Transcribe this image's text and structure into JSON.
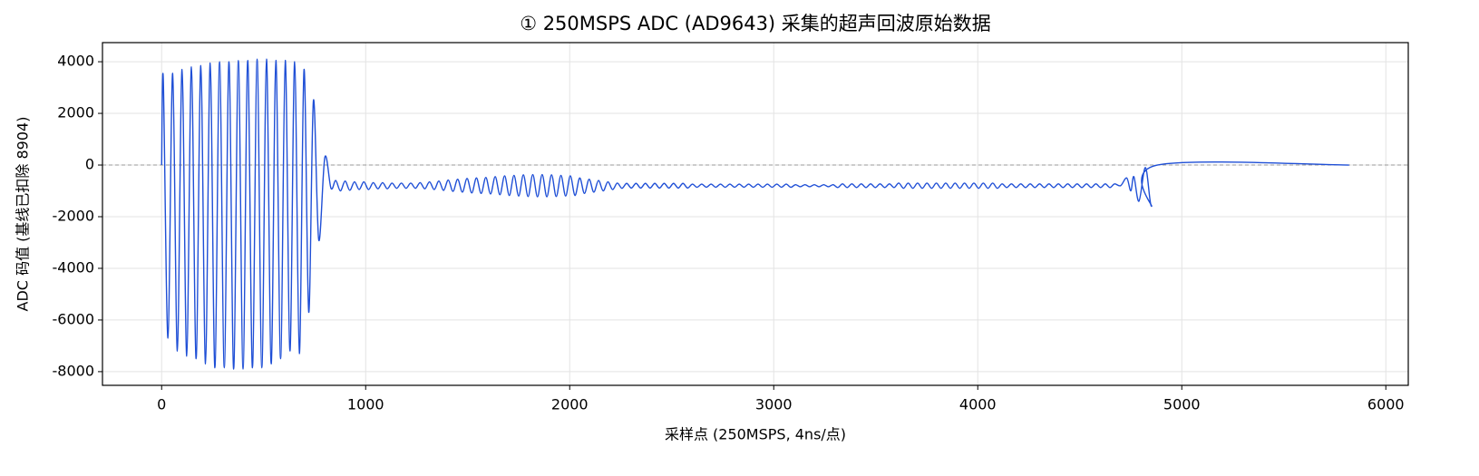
{
  "chart_data": {
    "type": "line",
    "title": "① 250MSPS ADC (AD9643) 采集的超声回波原始数据",
    "xlabel": "采样点 (250MSPS, 4ns/点)",
    "ylabel": "ADC 码值 (基线已扣除 8904)",
    "color": "#1f4fd6",
    "grid": true,
    "hline": 0,
    "xlim": [
      -290,
      6110
    ],
    "ylim": [
      -8530,
      4740
    ],
    "xticks": [
      0,
      1000,
      2000,
      3000,
      4000,
      5000,
      6000
    ],
    "yticks": [
      -8000,
      -6000,
      -4000,
      -2000,
      0,
      2000,
      4000
    ],
    "x": [
      0,
      8,
      31,
      54,
      77,
      100,
      123,
      146,
      169,
      192,
      215,
      238,
      261,
      284,
      307,
      330,
      353,
      376,
      399,
      422,
      445,
      468,
      491,
      514,
      537,
      560,
      583,
      606,
      629,
      652,
      675,
      698,
      721,
      744,
      770,
      800,
      830,
      853,
      876,
      899,
      922,
      945,
      968,
      991,
      1014,
      1037,
      1060,
      1083,
      1106,
      1129,
      1152,
      1175,
      1198,
      1221,
      1244,
      1267,
      1290,
      1313,
      1336,
      1359,
      1382,
      1405,
      1428,
      1451,
      1474,
      1497,
      1520,
      1543,
      1566,
      1589,
      1612,
      1635,
      1658,
      1681,
      1704,
      1727,
      1750,
      1773,
      1796,
      1819,
      1842,
      1865,
      1888,
      1911,
      1934,
      1957,
      1980,
      2003,
      2026,
      2049,
      2072,
      2095,
      2118,
      2141,
      2164,
      2187,
      2210,
      2233,
      2256,
      2279,
      2302,
      2325,
      2348,
      2371,
      2394,
      2417,
      2440,
      2463,
      2486,
      2509,
      2532,
      2555,
      2578,
      2601,
      2624,
      2647,
      2670,
      2693,
      2716,
      2739,
      2762,
      2785,
      2808,
      2831,
      2854,
      2877,
      2900,
      2923,
      2946,
      2969,
      2992,
      3015,
      3038,
      3061,
      3084,
      3107,
      3130,
      3153,
      3176,
      3199,
      3222,
      3245,
      3268,
      3291,
      3314,
      3337,
      3360,
      3383,
      3406,
      3429,
      3452,
      3475,
      3498,
      3521,
      3544,
      3567,
      3590,
      3613,
      3636,
      3659,
      3682,
      3705,
      3728,
      3751,
      3774,
      3797,
      3820,
      3843,
      3866,
      3889,
      3912,
      3935,
      3958,
      3981,
      4004,
      4027,
      4050,
      4073,
      4096,
      4119,
      4142,
      4165,
      4188,
      4211,
      4234,
      4257,
      4280,
      4303,
      4326,
      4349,
      4372,
      4395,
      4418,
      4441,
      4464,
      4487,
      4510,
      4533,
      4556,
      4579,
      4602,
      4625,
      4648,
      4671,
      4700,
      4730,
      4750,
      4765,
      4790,
      4822,
      4852,
      4880,
      5820
    ],
    "values": [
      0,
      3350,
      -6700,
      3550,
      -7200,
      3700,
      -7400,
      3800,
      -7500,
      3850,
      -7700,
      3950,
      -7850,
      4000,
      -7850,
      4000,
      -7900,
      4050,
      -7900,
      4050,
      -7850,
      4100,
      -7850,
      4100,
      -7700,
      4050,
      -7500,
      4050,
      -7200,
      4000,
      -7300,
      3700,
      -5700,
      2500,
      -2900,
      300,
      -900,
      -600,
      -1000,
      -620,
      -980,
      -650,
      -950,
      -650,
      -950,
      -680,
      -920,
      -680,
      -920,
      -700,
      -900,
      -700,
      -900,
      -700,
      -900,
      -680,
      -920,
      -650,
      -950,
      -620,
      -980,
      -580,
      -1020,
      -550,
      -1050,
      -520,
      -1080,
      -500,
      -1100,
      -480,
      -1120,
      -450,
      -1150,
      -420,
      -1180,
      -400,
      -1200,
      -380,
      -1220,
      -370,
      -1230,
      -370,
      -1230,
      -380,
      -1220,
      -400,
      -1200,
      -420,
      -1180,
      -500,
      -1100,
      -550,
      -1050,
      -600,
      -1000,
      -650,
      -950,
      -700,
      -900,
      -710,
      -890,
      -710,
      -890,
      -710,
      -890,
      -710,
      -890,
      -710,
      -890,
      -710,
      -890,
      -710,
      -890,
      -740,
      -860,
      -740,
      -860,
      -740,
      -860,
      -740,
      -860,
      -740,
      -860,
      -740,
      -860,
      -740,
      -860,
      -740,
      -860,
      -740,
      -860,
      -740,
      -860,
      -740,
      -860,
      -760,
      -840,
      -760,
      -840,
      -760,
      -840,
      -760,
      -840,
      -760,
      -870,
      -730,
      -870,
      -730,
      -870,
      -730,
      -870,
      -730,
      -870,
      -730,
      -870,
      -730,
      -870,
      -700,
      -900,
      -700,
      -900,
      -700,
      -900,
      -700,
      -900,
      -700,
      -900,
      -700,
      -900,
      -700,
      -900,
      -700,
      -900,
      -700,
      -900,
      -700,
      -900,
      -700,
      -900,
      -730,
      -870,
      -730,
      -870,
      -730,
      -870,
      -730,
      -870,
      -730,
      -870,
      -730,
      -870,
      -730,
      -870,
      -730,
      -870,
      -730,
      -870,
      -730,
      -870,
      -730,
      -870,
      -730,
      -870,
      -730,
      -800,
      -500,
      -1000,
      -450,
      -1400,
      -100,
      -1600,
      0,
      0
    ]
  }
}
